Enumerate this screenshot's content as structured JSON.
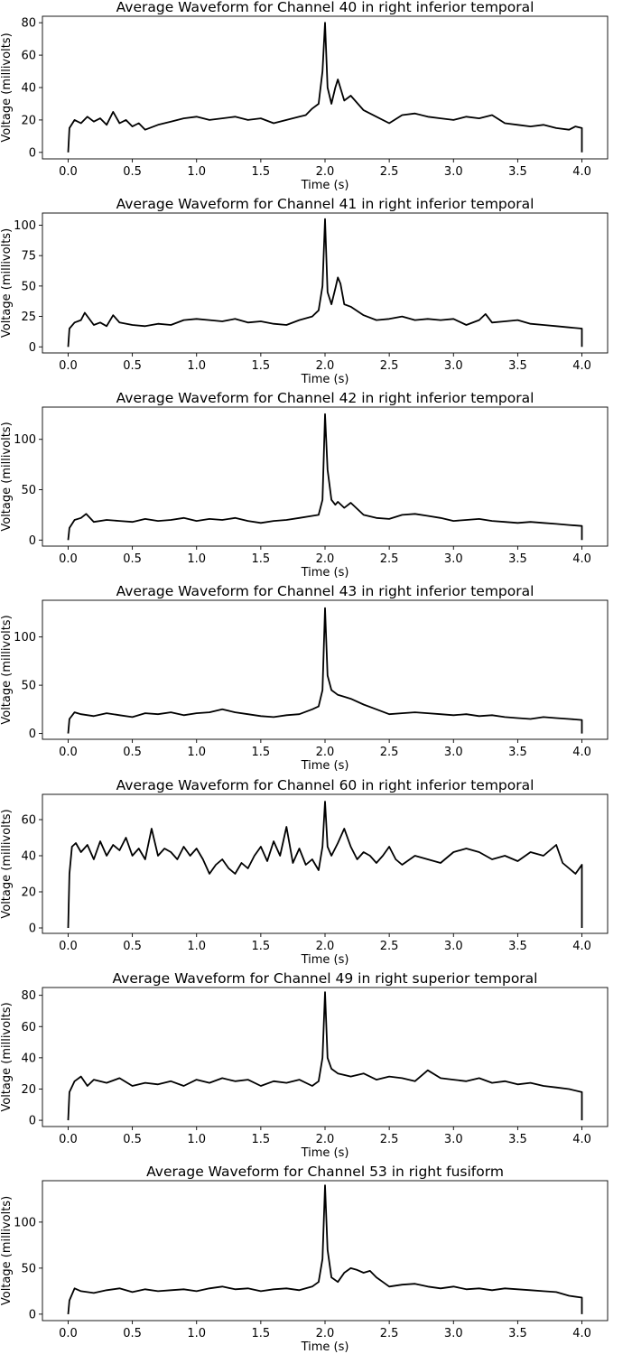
{
  "chart_data": [
    {
      "type": "line",
      "title": "Average Waveform for Channel 40 in  right inferior temporal",
      "xlabel": "Time (s)",
      "ylabel": "Voltage (millivolts)",
      "xlim": [
        -0.2,
        4.2
      ],
      "ylim": [
        -4,
        84
      ],
      "xticks": [
        0.0,
        0.5,
        1.0,
        1.5,
        2.0,
        2.5,
        3.0,
        3.5,
        4.0
      ],
      "xtick_labels": [
        "0.0",
        "0.5",
        "1.0",
        "1.5",
        "2.0",
        "2.5",
        "3.0",
        "3.5",
        "4.0"
      ],
      "yticks": [
        0,
        20,
        40,
        60,
        80
      ],
      "ytick_labels": [
        "0",
        "20",
        "40",
        "60",
        "80"
      ],
      "color": "#000000",
      "series": [
        {
          "name": "Channel 40",
          "x": [
            0.0,
            0.01,
            0.05,
            0.1,
            0.15,
            0.2,
            0.25,
            0.3,
            0.35,
            0.4,
            0.45,
            0.5,
            0.55,
            0.6,
            0.7,
            0.8,
            0.9,
            1.0,
            1.1,
            1.2,
            1.3,
            1.4,
            1.5,
            1.6,
            1.7,
            1.8,
            1.85,
            1.9,
            1.95,
            1.98,
            2.0,
            2.02,
            2.05,
            2.08,
            2.1,
            2.15,
            2.2,
            2.3,
            2.4,
            2.5,
            2.6,
            2.7,
            2.8,
            2.9,
            3.0,
            3.1,
            3.2,
            3.3,
            3.4,
            3.5,
            3.6,
            3.7,
            3.8,
            3.9,
            3.95,
            4.0,
            4.0
          ],
          "y": [
            0,
            15,
            20,
            18,
            22,
            19,
            21,
            17,
            25,
            18,
            20,
            16,
            18,
            14,
            17,
            19,
            21,
            22,
            20,
            21,
            22,
            20,
            21,
            18,
            20,
            22,
            23,
            27,
            30,
            50,
            80,
            40,
            30,
            40,
            45,
            32,
            35,
            26,
            22,
            18,
            23,
            24,
            22,
            21,
            20,
            22,
            21,
            23,
            18,
            17,
            16,
            17,
            15,
            14,
            16,
            15,
            0
          ]
        }
      ]
    },
    {
      "type": "line",
      "title": "Average Waveform for Channel 41 in  right inferior temporal",
      "xlabel": "Time (s)",
      "ylabel": "Voltage (millivolts)",
      "xlim": [
        -0.2,
        4.2
      ],
      "ylim": [
        -5,
        110
      ],
      "xticks": [
        0.0,
        0.5,
        1.0,
        1.5,
        2.0,
        2.5,
        3.0,
        3.5,
        4.0
      ],
      "xtick_labels": [
        "0.0",
        "0.5",
        "1.0",
        "1.5",
        "2.0",
        "2.5",
        "3.0",
        "3.5",
        "4.0"
      ],
      "yticks": [
        0,
        25,
        50,
        75,
        100
      ],
      "ytick_labels": [
        "0",
        "25",
        "50",
        "75",
        "100"
      ],
      "color": "#000000",
      "series": [
        {
          "name": "Channel 41",
          "x": [
            0.0,
            0.01,
            0.05,
            0.1,
            0.13,
            0.2,
            0.25,
            0.3,
            0.35,
            0.4,
            0.5,
            0.6,
            0.7,
            0.8,
            0.9,
            1.0,
            1.1,
            1.2,
            1.3,
            1.4,
            1.5,
            1.6,
            1.7,
            1.8,
            1.9,
            1.95,
            1.98,
            2.0,
            2.02,
            2.05,
            2.08,
            2.1,
            2.12,
            2.15,
            2.2,
            2.3,
            2.4,
            2.5,
            2.6,
            2.7,
            2.8,
            2.9,
            3.0,
            3.1,
            3.2,
            3.25,
            3.3,
            3.4,
            3.5,
            3.6,
            3.7,
            3.8,
            3.9,
            4.0,
            4.0
          ],
          "y": [
            0,
            15,
            20,
            22,
            28,
            18,
            20,
            17,
            26,
            20,
            18,
            17,
            19,
            18,
            22,
            23,
            22,
            21,
            23,
            20,
            21,
            19,
            18,
            22,
            25,
            30,
            50,
            105,
            45,
            35,
            48,
            57,
            52,
            35,
            33,
            26,
            22,
            23,
            25,
            22,
            23,
            22,
            23,
            18,
            22,
            27,
            20,
            21,
            22,
            19,
            18,
            17,
            16,
            15,
            0
          ]
        }
      ]
    },
    {
      "type": "line",
      "title": "Average Waveform for Channel 42 in  right inferior temporal",
      "xlabel": "Time (s)",
      "ylabel": "Voltage (millivolts)",
      "xlim": [
        -0.2,
        4.2
      ],
      "ylim": [
        -6,
        132
      ],
      "xticks": [
        0.0,
        0.5,
        1.0,
        1.5,
        2.0,
        2.5,
        3.0,
        3.5,
        4.0
      ],
      "xtick_labels": [
        "0.0",
        "0.5",
        "1.0",
        "1.5",
        "2.0",
        "2.5",
        "3.0",
        "3.5",
        "4.0"
      ],
      "yticks": [
        0,
        50,
        100
      ],
      "ytick_labels": [
        "0",
        "50",
        "100"
      ],
      "color": "#000000",
      "series": [
        {
          "name": "Channel 42",
          "x": [
            0.0,
            0.01,
            0.05,
            0.1,
            0.14,
            0.2,
            0.3,
            0.4,
            0.5,
            0.6,
            0.7,
            0.8,
            0.9,
            1.0,
            1.1,
            1.2,
            1.3,
            1.4,
            1.5,
            1.6,
            1.7,
            1.8,
            1.9,
            1.95,
            1.98,
            2.0,
            2.02,
            2.05,
            2.08,
            2.1,
            2.15,
            2.2,
            2.3,
            2.4,
            2.5,
            2.6,
            2.7,
            2.8,
            2.9,
            3.0,
            3.1,
            3.2,
            3.3,
            3.4,
            3.5,
            3.6,
            3.7,
            3.8,
            3.9,
            4.0,
            4.0
          ],
          "y": [
            0,
            12,
            20,
            22,
            26,
            18,
            20,
            19,
            18,
            21,
            19,
            20,
            22,
            19,
            21,
            20,
            22,
            19,
            17,
            19,
            20,
            22,
            24,
            25,
            40,
            125,
            70,
            40,
            35,
            38,
            32,
            37,
            25,
            22,
            21,
            25,
            26,
            24,
            22,
            19,
            20,
            21,
            19,
            18,
            17,
            18,
            17,
            16,
            15,
            14,
            0
          ]
        }
      ]
    },
    {
      "type": "line",
      "title": "Average Waveform for Channel 43 in  right inferior temporal",
      "xlabel": "Time (s)",
      "ylabel": "Voltage (millivolts)",
      "xlim": [
        -0.2,
        4.2
      ],
      "ylim": [
        -6,
        138
      ],
      "xticks": [
        0.0,
        0.5,
        1.0,
        1.5,
        2.0,
        2.5,
        3.0,
        3.5,
        4.0
      ],
      "xtick_labels": [
        "0.0",
        "0.5",
        "1.0",
        "1.5",
        "2.0",
        "2.5",
        "3.0",
        "3.5",
        "4.0"
      ],
      "yticks": [
        0,
        50,
        100
      ],
      "ytick_labels": [
        "0",
        "50",
        "100"
      ],
      "color": "#000000",
      "series": [
        {
          "name": "Channel 43",
          "x": [
            0.0,
            0.01,
            0.05,
            0.1,
            0.2,
            0.3,
            0.4,
            0.5,
            0.6,
            0.7,
            0.8,
            0.9,
            1.0,
            1.1,
            1.2,
            1.3,
            1.4,
            1.5,
            1.6,
            1.7,
            1.8,
            1.9,
            1.95,
            1.98,
            2.0,
            2.02,
            2.05,
            2.08,
            2.1,
            2.15,
            2.2,
            2.3,
            2.4,
            2.5,
            2.6,
            2.7,
            2.8,
            2.9,
            3.0,
            3.1,
            3.2,
            3.3,
            3.4,
            3.5,
            3.6,
            3.7,
            3.8,
            3.9,
            4.0,
            4.0
          ],
          "y": [
            0,
            15,
            22,
            20,
            18,
            21,
            19,
            17,
            21,
            20,
            22,
            19,
            21,
            22,
            25,
            22,
            20,
            18,
            17,
            19,
            20,
            25,
            28,
            45,
            130,
            60,
            45,
            42,
            40,
            38,
            36,
            30,
            25,
            20,
            21,
            22,
            21,
            20,
            19,
            20,
            18,
            19,
            17,
            16,
            15,
            17,
            16,
            15,
            14,
            0
          ]
        }
      ]
    },
    {
      "type": "line",
      "title": "Average Waveform for Channel 60 in  right inferior temporal",
      "xlabel": "Time (s)",
      "ylabel": "Voltage (millivolts)",
      "xlim": [
        -0.2,
        4.2
      ],
      "ylim": [
        -3,
        74
      ],
      "xticks": [
        0.0,
        0.5,
        1.0,
        1.5,
        2.0,
        2.5,
        3.0,
        3.5,
        4.0
      ],
      "xtick_labels": [
        "0.0",
        "0.5",
        "1.0",
        "1.5",
        "2.0",
        "2.5",
        "3.0",
        "3.5",
        "4.0"
      ],
      "yticks": [
        0,
        20,
        40,
        60
      ],
      "ytick_labels": [
        "0",
        "20",
        "40",
        "60"
      ],
      "color": "#000000",
      "series": [
        {
          "name": "Channel 60",
          "x": [
            0.0,
            0.01,
            0.03,
            0.06,
            0.1,
            0.15,
            0.2,
            0.25,
            0.3,
            0.35,
            0.4,
            0.45,
            0.5,
            0.55,
            0.6,
            0.65,
            0.7,
            0.75,
            0.8,
            0.85,
            0.9,
            0.95,
            1.0,
            1.05,
            1.1,
            1.15,
            1.2,
            1.25,
            1.3,
            1.35,
            1.4,
            1.45,
            1.5,
            1.55,
            1.6,
            1.65,
            1.7,
            1.75,
            1.8,
            1.85,
            1.9,
            1.95,
            1.98,
            2.0,
            2.02,
            2.05,
            2.1,
            2.15,
            2.2,
            2.25,
            2.3,
            2.35,
            2.4,
            2.45,
            2.5,
            2.55,
            2.6,
            2.7,
            2.8,
            2.9,
            3.0,
            3.1,
            3.2,
            3.3,
            3.4,
            3.5,
            3.6,
            3.7,
            3.8,
            3.85,
            3.9,
            3.95,
            4.0,
            4.0
          ],
          "y": [
            0,
            30,
            45,
            47,
            42,
            46,
            38,
            48,
            40,
            46,
            43,
            50,
            40,
            44,
            38,
            55,
            40,
            44,
            42,
            38,
            45,
            40,
            44,
            38,
            30,
            35,
            38,
            33,
            30,
            36,
            33,
            40,
            45,
            37,
            48,
            40,
            56,
            36,
            44,
            35,
            38,
            32,
            45,
            70,
            45,
            40,
            47,
            55,
            45,
            38,
            42,
            40,
            36,
            40,
            45,
            38,
            35,
            40,
            38,
            36,
            42,
            44,
            42,
            38,
            40,
            37,
            42,
            40,
            46,
            36,
            33,
            30,
            35,
            0
          ]
        }
      ]
    },
    {
      "type": "line",
      "title": "Average Waveform for Channel 49 in  right superior temporal",
      "xlabel": "Time (s)",
      "ylabel": "Voltage (millivolts)",
      "xlim": [
        -0.2,
        4.2
      ],
      "ylim": [
        -4,
        85
      ],
      "xticks": [
        0.0,
        0.5,
        1.0,
        1.5,
        2.0,
        2.5,
        3.0,
        3.5,
        4.0
      ],
      "xtick_labels": [
        "0.0",
        "0.5",
        "1.0",
        "1.5",
        "2.0",
        "2.5",
        "3.0",
        "3.5",
        "4.0"
      ],
      "yticks": [
        0,
        20,
        40,
        60,
        80
      ],
      "ytick_labels": [
        "0",
        "20",
        "40",
        "60",
        "80"
      ],
      "color": "#000000",
      "series": [
        {
          "name": "Channel 49",
          "x": [
            0.0,
            0.01,
            0.05,
            0.1,
            0.15,
            0.2,
            0.3,
            0.4,
            0.5,
            0.6,
            0.7,
            0.8,
            0.9,
            1.0,
            1.1,
            1.2,
            1.3,
            1.4,
            1.5,
            1.6,
            1.7,
            1.8,
            1.9,
            1.95,
            1.98,
            2.0,
            2.02,
            2.05,
            2.1,
            2.2,
            2.3,
            2.4,
            2.5,
            2.6,
            2.7,
            2.8,
            2.9,
            3.0,
            3.1,
            3.2,
            3.3,
            3.4,
            3.5,
            3.6,
            3.7,
            3.8,
            3.9,
            4.0,
            4.0
          ],
          "y": [
            0,
            18,
            25,
            28,
            22,
            26,
            24,
            27,
            22,
            24,
            23,
            25,
            22,
            26,
            24,
            27,
            25,
            26,
            22,
            25,
            24,
            26,
            22,
            25,
            40,
            82,
            40,
            33,
            30,
            28,
            30,
            26,
            28,
            27,
            25,
            32,
            27,
            26,
            25,
            27,
            24,
            25,
            23,
            24,
            22,
            21,
            20,
            18,
            0
          ]
        }
      ]
    },
    {
      "type": "line",
      "title": "Average Waveform for Channel 53 in  right fusiform",
      "xlabel": "Time (s)",
      "ylabel": "Voltage (millivolts)",
      "xlim": [
        -0.2,
        4.2
      ],
      "ylim": [
        -7,
        145
      ],
      "xticks": [
        0.0,
        0.5,
        1.0,
        1.5,
        2.0,
        2.5,
        3.0,
        3.5,
        4.0
      ],
      "xtick_labels": [
        "0.0",
        "0.5",
        "1.0",
        "1.5",
        "2.0",
        "2.5",
        "3.0",
        "3.5",
        "4.0"
      ],
      "yticks": [
        0,
        50,
        100
      ],
      "ytick_labels": [
        "0",
        "50",
        "100"
      ],
      "color": "#000000",
      "series": [
        {
          "name": "Channel 53",
          "x": [
            0.0,
            0.01,
            0.05,
            0.1,
            0.2,
            0.3,
            0.4,
            0.5,
            0.6,
            0.7,
            0.8,
            0.9,
            1.0,
            1.1,
            1.2,
            1.3,
            1.4,
            1.5,
            1.6,
            1.7,
            1.8,
            1.9,
            1.95,
            1.98,
            2.0,
            2.02,
            2.05,
            2.1,
            2.15,
            2.2,
            2.25,
            2.3,
            2.35,
            2.4,
            2.45,
            2.5,
            2.6,
            2.7,
            2.8,
            2.9,
            3.0,
            3.1,
            3.2,
            3.3,
            3.4,
            3.5,
            3.6,
            3.7,
            3.8,
            3.9,
            4.0,
            4.0
          ],
          "y": [
            0,
            15,
            28,
            25,
            23,
            26,
            28,
            24,
            27,
            25,
            26,
            27,
            25,
            28,
            30,
            27,
            28,
            25,
            27,
            28,
            26,
            30,
            35,
            60,
            140,
            70,
            40,
            35,
            45,
            50,
            48,
            45,
            47,
            40,
            35,
            30,
            32,
            33,
            30,
            28,
            30,
            27,
            28,
            26,
            28,
            27,
            26,
            25,
            24,
            20,
            18,
            0
          ]
        }
      ]
    }
  ]
}
